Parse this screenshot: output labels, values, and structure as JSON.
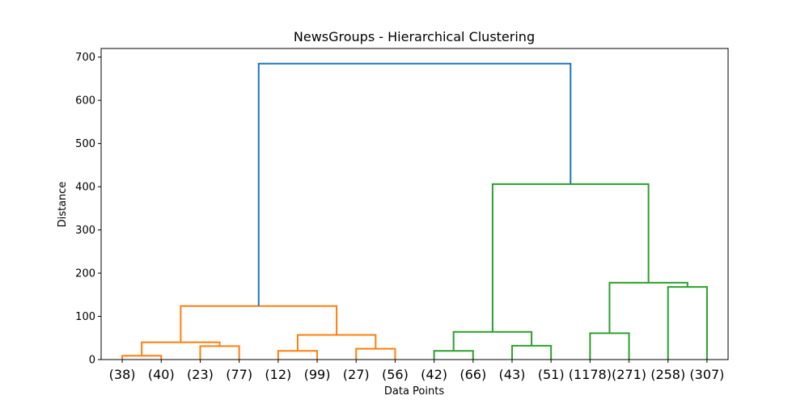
{
  "chart_data": {
    "type": "dendrogram",
    "title": "NewsGroups - Hierarchical Clustering",
    "xlabel": "Data Points",
    "ylabel": "Distance",
    "ylim": [
      0,
      720
    ],
    "yticks": [
      "0",
      "100",
      "200",
      "300",
      "400",
      "500",
      "600",
      "700"
    ],
    "leaves": [
      "(38)",
      "(40)",
      "(23)",
      "(77)",
      "(12)",
      "(99)",
      "(27)",
      "(56)",
      "(42)",
      "(66)",
      "(43)",
      "(51)",
      "(1178)",
      "(271)",
      "(258)",
      "(307)"
    ],
    "colors": {
      "orange": "#ff7f0e",
      "green": "#2ca02c",
      "blue": "#1f77b4"
    },
    "links": [
      {
        "left": 0,
        "right": 1,
        "height": 9,
        "color": "orange"
      },
      {
        "left": 2,
        "right": 3,
        "height": 31,
        "color": "orange"
      },
      {
        "left": "c0",
        "right": "c1",
        "height": 40,
        "color": "orange"
      },
      {
        "left": 4,
        "right": 5,
        "height": 20,
        "color": "orange"
      },
      {
        "left": 6,
        "right": 7,
        "height": 25,
        "color": "orange"
      },
      {
        "left": "c3",
        "right": "c4",
        "height": 57,
        "color": "orange"
      },
      {
        "left": "c2",
        "right": "c5",
        "height": 124,
        "color": "orange"
      },
      {
        "left": 8,
        "right": 9,
        "height": 20,
        "color": "green"
      },
      {
        "left": 10,
        "right": 11,
        "height": 32,
        "color": "green"
      },
      {
        "left": "c7",
        "right": "c8",
        "height": 64,
        "color": "green"
      },
      {
        "left": 12,
        "right": 13,
        "height": 61,
        "color": "green"
      },
      {
        "left": 14,
        "right": 15,
        "height": 168,
        "color": "green"
      },
      {
        "left": "c10",
        "right": "c11",
        "height": 178,
        "color": "green"
      },
      {
        "left": "c9",
        "right": "c12",
        "height": 406,
        "color": "green"
      },
      {
        "left": "c6",
        "right": "c13",
        "height": 685,
        "color": "blue"
      }
    ]
  }
}
